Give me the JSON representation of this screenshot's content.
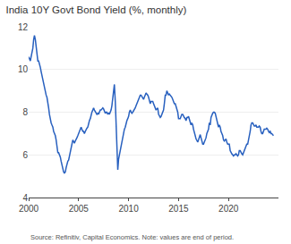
{
  "chart_data": {
    "type": "line",
    "title": "India 10Y Govt Bond Yield (%, monthly)",
    "annotations": [
      "Source: Refinitiv, Capital Economics. Note: values are end of period."
    ],
    "color": "#2860bf",
    "grid": true,
    "xlim": [
      2000.0,
      2025.0
    ],
    "xticks": [
      2000,
      2005,
      2010,
      2015,
      2020
    ],
    "ylim": [
      4,
      12
    ],
    "yticks": [
      4,
      6,
      8,
      10,
      12
    ],
    "x": [
      2000.0,
      2000.08,
      2000.17,
      2000.25,
      2000.33,
      2000.42,
      2000.5,
      2000.58,
      2000.67,
      2000.75,
      2000.83,
      2000.92,
      2001.0,
      2001.08,
      2001.17,
      2001.25,
      2001.33,
      2001.42,
      2001.5,
      2001.58,
      2001.67,
      2001.75,
      2001.83,
      2001.92,
      2002.0,
      2002.08,
      2002.17,
      2002.25,
      2002.33,
      2002.42,
      2002.5,
      2002.58,
      2002.67,
      2002.75,
      2002.83,
      2002.92,
      2003.0,
      2003.08,
      2003.17,
      2003.25,
      2003.33,
      2003.42,
      2003.5,
      2003.58,
      2003.67,
      2003.75,
      2003.83,
      2003.92,
      2004.0,
      2004.08,
      2004.17,
      2004.25,
      2004.33,
      2004.42,
      2004.5,
      2004.58,
      2004.67,
      2004.75,
      2004.83,
      2004.92,
      2005.0,
      2005.08,
      2005.17,
      2005.25,
      2005.33,
      2005.42,
      2005.5,
      2005.58,
      2005.67,
      2005.75,
      2005.83,
      2005.92,
      2006.0,
      2006.08,
      2006.17,
      2006.25,
      2006.33,
      2006.42,
      2006.5,
      2006.58,
      2006.67,
      2006.75,
      2006.83,
      2006.92,
      2007.0,
      2007.08,
      2007.17,
      2007.25,
      2007.33,
      2007.42,
      2007.5,
      2007.58,
      2007.67,
      2007.75,
      2007.83,
      2007.92,
      2008.0,
      2008.08,
      2008.17,
      2008.25,
      2008.33,
      2008.42,
      2008.5,
      2008.58,
      2008.67,
      2008.75,
      2008.83,
      2008.92,
      2009.0,
      2009.08,
      2009.17,
      2009.25,
      2009.33,
      2009.42,
      2009.5,
      2009.58,
      2009.67,
      2009.75,
      2009.83,
      2009.92,
      2010.0,
      2010.08,
      2010.17,
      2010.25,
      2010.33,
      2010.42,
      2010.5,
      2010.58,
      2010.67,
      2010.75,
      2010.83,
      2010.92,
      2011.0,
      2011.08,
      2011.17,
      2011.25,
      2011.33,
      2011.42,
      2011.5,
      2011.58,
      2011.67,
      2011.75,
      2011.83,
      2011.92,
      2012.0,
      2012.08,
      2012.17,
      2012.25,
      2012.33,
      2012.42,
      2012.5,
      2012.58,
      2012.67,
      2012.75,
      2012.83,
      2012.92,
      2013.0,
      2013.08,
      2013.17,
      2013.25,
      2013.33,
      2013.42,
      2013.5,
      2013.58,
      2013.67,
      2013.75,
      2013.83,
      2013.92,
      2014.0,
      2014.08,
      2014.17,
      2014.25,
      2014.33,
      2014.42,
      2014.5,
      2014.58,
      2014.67,
      2014.75,
      2014.83,
      2014.92,
      2015.0,
      2015.08,
      2015.17,
      2015.25,
      2015.33,
      2015.42,
      2015.5,
      2015.58,
      2015.67,
      2015.75,
      2015.83,
      2015.92,
      2016.0,
      2016.08,
      2016.17,
      2016.25,
      2016.33,
      2016.42,
      2016.5,
      2016.58,
      2016.67,
      2016.75,
      2016.83,
      2016.92,
      2017.0,
      2017.08,
      2017.17,
      2017.25,
      2017.33,
      2017.42,
      2017.5,
      2017.58,
      2017.67,
      2017.75,
      2017.83,
      2017.92,
      2018.0,
      2018.08,
      2018.17,
      2018.25,
      2018.33,
      2018.42,
      2018.5,
      2018.58,
      2018.67,
      2018.75,
      2018.83,
      2018.92,
      2019.0,
      2019.08,
      2019.17,
      2019.25,
      2019.33,
      2019.42,
      2019.5,
      2019.58,
      2019.67,
      2019.75,
      2019.83,
      2019.92,
      2020.0,
      2020.08,
      2020.17,
      2020.25,
      2020.33,
      2020.42,
      2020.5,
      2020.58,
      2020.67,
      2020.75,
      2020.83,
      2020.92,
      2021.0,
      2021.08,
      2021.17,
      2021.25,
      2021.33,
      2021.42,
      2021.5,
      2021.58,
      2021.67,
      2021.75,
      2021.83,
      2021.92,
      2022.0,
      2022.08,
      2022.17,
      2022.25,
      2022.33,
      2022.42,
      2022.5,
      2022.58,
      2022.67,
      2022.75,
      2022.83,
      2022.92,
      2023.0,
      2023.08,
      2023.17,
      2023.25,
      2023.33,
      2023.42,
      2023.5,
      2023.58,
      2023.67,
      2023.75,
      2023.83,
      2023.92,
      2024.0,
      2024.08,
      2024.17,
      2024.25,
      2024.33,
      2024.42,
      2024.5
    ],
    "values": [
      10.6,
      10.5,
      10.4,
      10.6,
      10.8,
      11.0,
      11.4,
      11.6,
      11.4,
      11.1,
      10.6,
      10.4,
      10.4,
      10.3,
      10.1,
      9.9,
      9.7,
      9.5,
      9.3,
      9.1,
      9.0,
      8.8,
      8.7,
      8.5,
      8.2,
      7.9,
      7.6,
      7.5,
      7.4,
      7.3,
      7.1,
      7.0,
      6.9,
      6.7,
      6.3,
      6.1,
      6.1,
      6.0,
      5.9,
      5.7,
      5.5,
      5.3,
      5.2,
      5.15,
      5.2,
      5.4,
      5.6,
      5.7,
      5.75,
      5.9,
      6.1,
      6.3,
      6.5,
      6.7,
      6.6,
      6.55,
      6.65,
      6.7,
      6.8,
      6.9,
      7.0,
      7.1,
      7.2,
      7.3,
      7.2,
      7.1,
      7.1,
      7.0,
      7.1,
      7.2,
      7.25,
      7.3,
      7.5,
      7.6,
      7.7,
      7.9,
      8.0,
      8.1,
      8.2,
      8.1,
      8.0,
      7.95,
      7.9,
      7.95,
      7.9,
      8.0,
      8.1,
      8.1,
      8.15,
      8.2,
      8.15,
      8.0,
      7.95,
      8.0,
      8.0,
      7.9,
      7.95,
      7.9,
      8.0,
      8.1,
      8.3,
      8.6,
      9.0,
      9.3,
      8.5,
      7.5,
      7.0,
      5.3,
      5.8,
      6.0,
      6.3,
      6.5,
      6.6,
      6.8,
      7.0,
      7.2,
      7.3,
      7.5,
      7.6,
      7.7,
      7.8,
      8.0,
      8.1,
      8.0,
      7.95,
      8.0,
      8.05,
      8.1,
      8.2,
      8.3,
      8.4,
      8.5,
      8.6,
      8.7,
      8.8,
      8.8,
      8.75,
      8.7,
      8.6,
      8.7,
      8.85,
      8.9,
      8.85,
      8.8,
      8.7,
      8.5,
      8.4,
      8.5,
      8.5,
      8.5,
      8.4,
      8.3,
      8.2,
      8.1,
      8.15,
      8.2,
      7.9,
      7.8,
      7.75,
      7.8,
      7.9,
      7.95,
      8.1,
      8.4,
      8.8,
      8.8,
      9.0,
      8.9,
      8.8,
      8.85,
      8.8,
      8.75,
      8.7,
      8.6,
      8.5,
      8.4,
      8.4,
      8.3,
      8.2,
      8.0,
      7.7,
      7.7,
      7.7,
      7.8,
      7.9,
      7.9,
      7.8,
      7.75,
      7.7,
      7.6,
      7.75,
      7.75,
      7.8,
      7.7,
      7.5,
      7.4,
      7.5,
      7.4,
      7.2,
      7.0,
      6.9,
      6.75,
      6.65,
      6.6,
      6.7,
      6.85,
      6.95,
      6.8,
      6.65,
      6.5,
      6.5,
      6.6,
      6.7,
      6.8,
      7.0,
      7.1,
      7.2,
      7.5,
      7.4,
      7.75,
      7.9,
      7.95,
      8.0,
      8.0,
      7.95,
      7.8,
      7.6,
      7.4,
      7.3,
      7.4,
      7.3,
      7.1,
      7.0,
      6.9,
      6.7,
      6.65,
      6.7,
      6.75,
      6.6,
      6.5,
      6.5,
      6.5,
      6.2,
      6.1,
      6.05,
      6.0,
      5.95,
      6.0,
      6.0,
      6.05,
      6.0,
      5.95,
      6.0,
      6.2,
      6.2,
      6.1,
      6.05,
      6.0,
      6.1,
      6.25,
      6.35,
      6.4,
      6.5,
      6.5,
      6.7,
      6.8,
      7.1,
      7.4,
      7.5,
      7.5,
      7.4,
      7.35,
      7.35,
      7.4,
      7.3,
      7.3,
      7.3,
      7.35,
      7.3,
      7.1,
      7.0,
      7.0,
      7.1,
      7.2,
      7.2,
      7.2,
      7.25,
      7.2,
      7.1,
      7.05,
      7.1,
      7.0,
      7.0,
      6.95,
      6.9
    ]
  }
}
